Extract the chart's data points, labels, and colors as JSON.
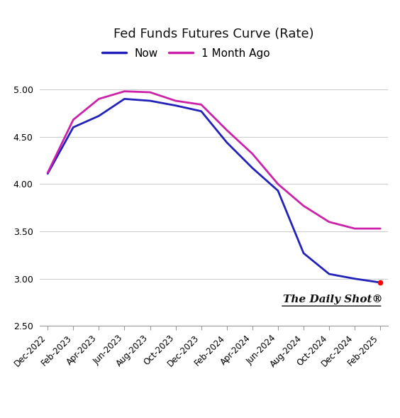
{
  "title": "Fed Funds Futures Curve (Rate)",
  "legend": [
    "Now",
    "1 Month Ago"
  ],
  "line_now_color": "#2222bb",
  "line_ago_color": "#cc22aa",
  "line_width": 2.0,
  "background_color": "#ffffff",
  "ylim": [
    2.5,
    5.15
  ],
  "yticks": [
    2.5,
    3.0,
    3.5,
    4.0,
    4.5,
    5.0
  ],
  "x_labels": [
    "Dec-2022",
    "Feb-2023",
    "Apr-2023",
    "Jun-2023",
    "Aug-2023",
    "Oct-2023",
    "Dec-2023",
    "Feb-2024",
    "Apr-2024",
    "Jun-2024",
    "Aug-2024",
    "Oct-2024",
    "Dec-2024",
    "Feb-2025"
  ],
  "now_y": [
    4.11,
    4.6,
    4.72,
    4.9,
    4.88,
    4.83,
    4.77,
    4.44,
    4.17,
    3.93,
    3.27,
    3.05,
    3.0,
    2.96
  ],
  "ago_y": [
    4.12,
    4.68,
    4.9,
    4.98,
    4.97,
    4.88,
    4.84,
    4.57,
    4.32,
    4.0,
    3.77,
    3.6,
    3.53,
    3.53
  ],
  "watermark": "The Daily Shot",
  "watermark_superscript": "®"
}
